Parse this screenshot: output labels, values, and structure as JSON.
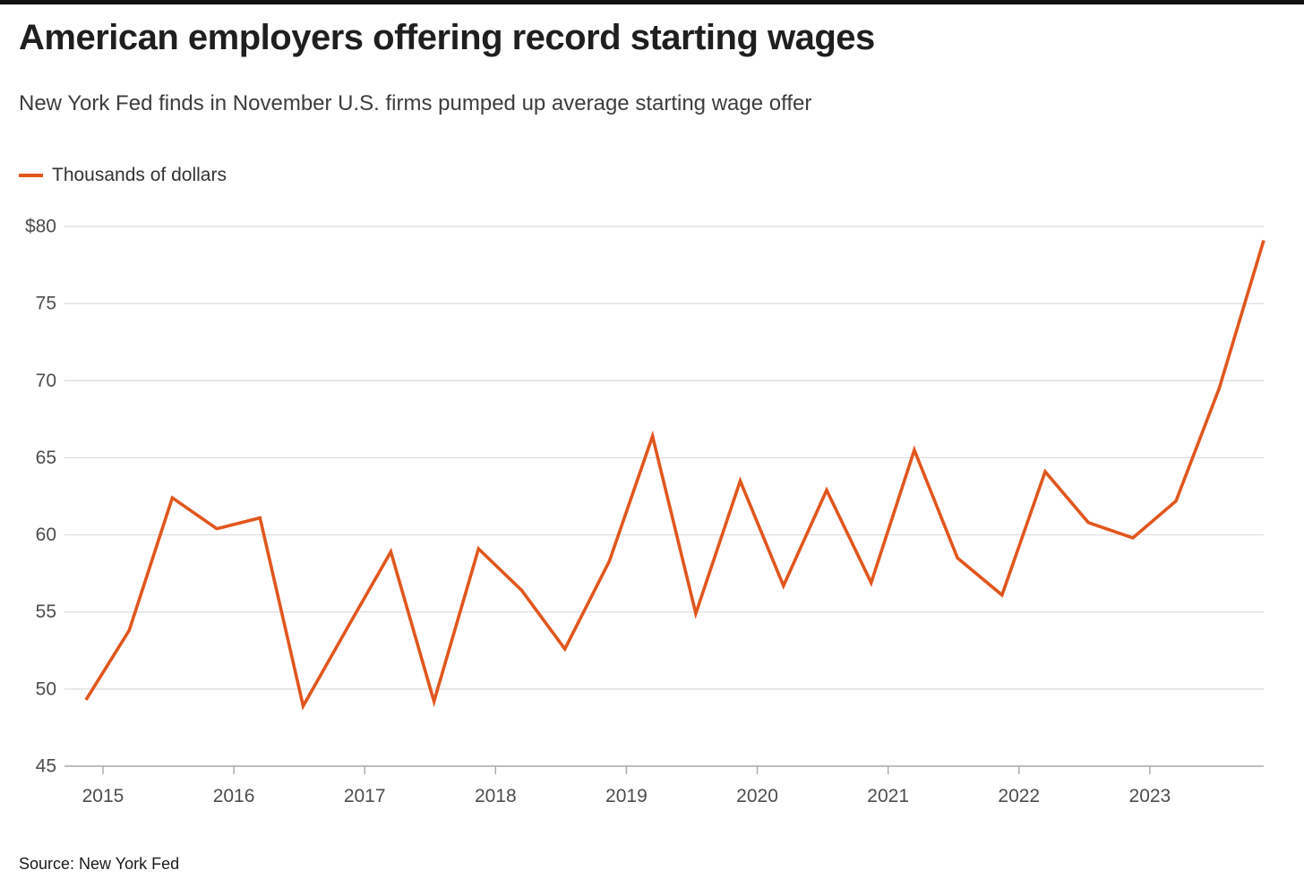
{
  "page": {
    "title": "American employers offering record starting wages",
    "subtitle": "New York Fed finds in November U.S. firms pumped up average starting wage offer",
    "source": "Source: New York Fed"
  },
  "chart_data": {
    "type": "line",
    "title": "American employers offering record starting wages",
    "subtitle": "New York Fed finds in November U.S. firms pumped up average starting wage offer",
    "unit": "Thousands of dollars",
    "source": "Source: New York Fed",
    "grid": "horizontal",
    "legend_position": "top-left",
    "line_color": "#e1561d",
    "ylim": [
      45,
      80
    ],
    "xlim": [
      2014.706,
      2023.87
    ],
    "y_ticks": [
      45,
      50,
      55,
      60,
      65,
      70,
      75,
      80
    ],
    "y_tick_labels": [
      "45",
      "50",
      "55",
      "60",
      "65",
      "70",
      "75",
      "$80"
    ],
    "x_ticks": [
      2015,
      2016,
      2017,
      2018,
      2019,
      2020,
      2021,
      2022,
      2023
    ],
    "x_tick_labels": [
      "2015",
      "2016",
      "2017",
      "2018",
      "2019",
      "2020",
      "2021",
      "2022",
      "2023"
    ],
    "series": [
      {
        "name": "Thousands of dollars",
        "color": "#e1561d",
        "points": [
          {
            "date": "Nov 2014",
            "x": 2014.87,
            "y": 49.3
          },
          {
            "date": "Mar 2015",
            "x": 2015.2,
            "y": 53.8
          },
          {
            "date": "Jul 2015",
            "x": 2015.53,
            "y": 62.4
          },
          {
            "date": "Nov 2015",
            "x": 2015.87,
            "y": 60.4
          },
          {
            "date": "Mar 2016",
            "x": 2016.2,
            "y": 61.1
          },
          {
            "date": "Jul 2016",
            "x": 2016.53,
            "y": 48.9
          },
          {
            "date": "Nov 2016",
            "x": 2016.87,
            "y": 54.0
          },
          {
            "date": "Mar 2017",
            "x": 2017.2,
            "y": 58.9
          },
          {
            "date": "Jul 2017",
            "x": 2017.53,
            "y": 49.2
          },
          {
            "date": "Nov 2017",
            "x": 2017.87,
            "y": 59.1
          },
          {
            "date": "Mar 2018",
            "x": 2018.2,
            "y": 56.4
          },
          {
            "date": "Jul 2018",
            "x": 2018.53,
            "y": 52.6
          },
          {
            "date": "Nov 2018",
            "x": 2018.87,
            "y": 58.3
          },
          {
            "date": "Mar 2019",
            "x": 2019.2,
            "y": 66.4
          },
          {
            "date": "Jul 2019",
            "x": 2019.53,
            "y": 54.9
          },
          {
            "date": "Nov 2019",
            "x": 2019.87,
            "y": 63.5
          },
          {
            "date": "Mar 2020",
            "x": 2020.2,
            "y": 56.7
          },
          {
            "date": "Jul 2020",
            "x": 2020.53,
            "y": 62.9
          },
          {
            "date": "Nov 2020",
            "x": 2020.87,
            "y": 56.9
          },
          {
            "date": "Mar 2021",
            "x": 2021.2,
            "y": 65.5
          },
          {
            "date": "Jul 2021",
            "x": 2021.53,
            "y": 58.5
          },
          {
            "date": "Nov 2021",
            "x": 2021.87,
            "y": 56.1
          },
          {
            "date": "Mar 2022",
            "x": 2022.2,
            "y": 64.1
          },
          {
            "date": "Jul 2022",
            "x": 2022.53,
            "y": 60.8
          },
          {
            "date": "Nov 2022",
            "x": 2022.87,
            "y": 59.8
          },
          {
            "date": "Mar 2023",
            "x": 2023.2,
            "y": 62.2
          },
          {
            "date": "Jul 2023",
            "x": 2023.53,
            "y": 69.5
          },
          {
            "date": "Nov 2023",
            "x": 2023.87,
            "y": 79.1
          }
        ]
      }
    ]
  }
}
